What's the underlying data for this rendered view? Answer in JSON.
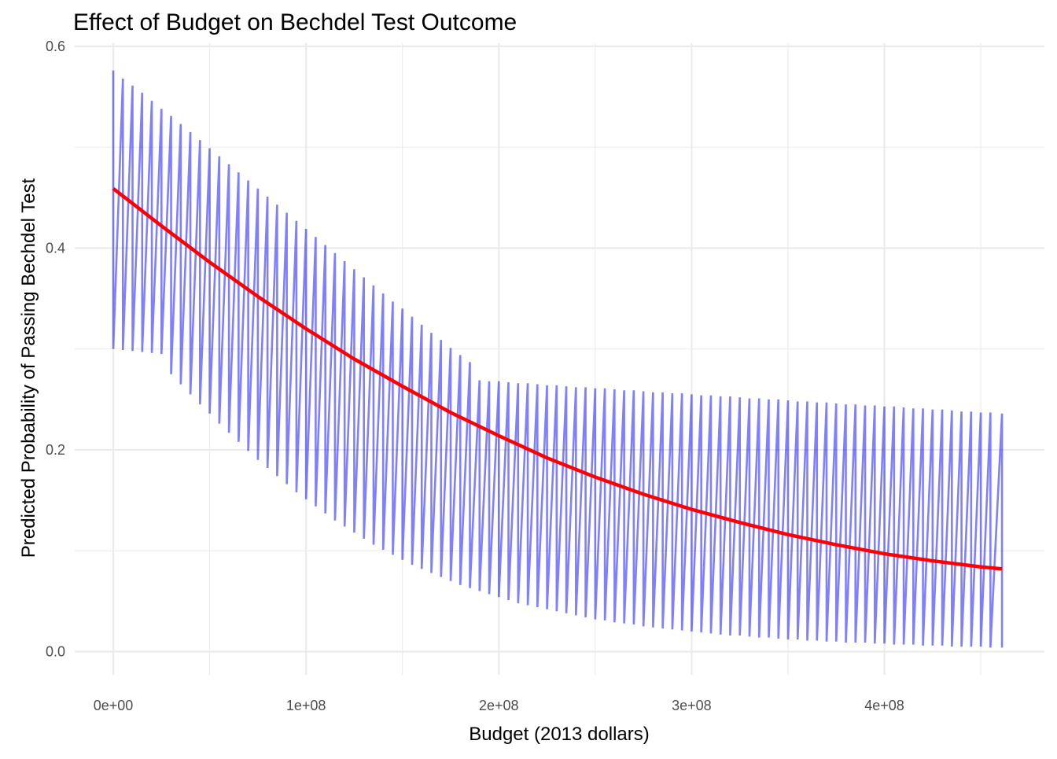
{
  "chart_data": {
    "type": "line",
    "title": "Effect of Budget on Bechdel Test Outcome",
    "xlabel": "Budget (2013 dollars)",
    "ylabel": "Predicted Probability of Passing Bechdel Test",
    "xlim": [
      -20000000,
      483000000
    ],
    "ylim": [
      -0.023,
      0.603
    ],
    "x_ticks": [
      0,
      100000000,
      200000000,
      300000000,
      400000000
    ],
    "x_tick_labels": [
      "0e+00",
      "1e+08",
      "2e+08",
      "3e+08",
      "4e+08"
    ],
    "y_ticks": [
      0.0,
      0.2,
      0.4,
      0.6
    ],
    "y_tick_labels": [
      "0.0",
      "0.2",
      "0.4",
      "0.6"
    ],
    "grid": true,
    "legend": "none",
    "colors": {
      "interval": "#0000ff",
      "fit": "#ff0000",
      "grid": "#ebebeb"
    },
    "series": [
      {
        "role": "confidence-interval",
        "x": [
          0,
          5000000,
          10000000,
          15000000,
          20000000,
          25000000,
          30000000,
          35000000,
          40000000,
          45000000,
          50000000,
          55000000,
          60000000,
          65000000,
          70000000,
          75000000,
          80000000,
          85000000,
          90000000,
          95000000,
          100000000,
          105000000,
          110000000,
          115000000,
          120000000,
          125000000,
          130000000,
          135000000,
          140000000,
          145000000,
          150000000,
          155000000,
          160000000,
          165000000,
          170000000,
          175000000,
          180000000,
          185000000,
          190000000,
          195000000,
          200000000,
          205000000,
          210000000,
          215000000,
          220000000,
          225000000,
          230000000,
          235000000,
          240000000,
          245000000,
          250000000,
          255000000,
          260000000,
          265000000,
          270000000,
          275000000,
          280000000,
          285000000,
          290000000,
          295000000,
          300000000,
          305000000,
          310000000,
          315000000,
          320000000,
          325000000,
          330000000,
          335000000,
          340000000,
          345000000,
          350000000,
          355000000,
          360000000,
          365000000,
          370000000,
          375000000,
          380000000,
          385000000,
          390000000,
          395000000,
          400000000,
          405000000,
          410000000,
          415000000,
          420000000,
          425000000,
          430000000,
          435000000,
          440000000,
          445000000,
          450000000,
          455000000,
          461000000
        ],
        "upper": [
          0.576,
          0.568,
          0.561,
          0.554,
          0.546,
          0.538,
          0.531,
          0.523,
          0.515,
          0.507,
          0.499,
          0.491,
          0.483,
          0.475,
          0.467,
          0.459,
          0.451,
          0.443,
          0.435,
          0.427,
          0.419,
          0.411,
          0.403,
          0.395,
          0.387,
          0.379,
          0.371,
          0.363,
          0.355,
          0.347,
          0.34,
          0.332,
          0.324,
          0.316,
          0.309,
          0.301,
          0.294,
          0.287,
          0.269,
          0.268,
          0.268,
          0.267,
          0.266,
          0.266,
          0.265,
          0.264,
          0.264,
          0.263,
          0.262,
          0.262,
          0.261,
          0.261,
          0.26,
          0.259,
          0.259,
          0.258,
          0.257,
          0.257,
          0.256,
          0.256,
          0.255,
          0.254,
          0.254,
          0.253,
          0.253,
          0.252,
          0.251,
          0.251,
          0.25,
          0.25,
          0.249,
          0.248,
          0.248,
          0.247,
          0.247,
          0.246,
          0.245,
          0.245,
          0.244,
          0.244,
          0.243,
          0.243,
          0.242,
          0.241,
          0.241,
          0.24,
          0.24,
          0.239,
          0.238,
          0.238,
          0.237,
          0.237,
          0.236
        ],
        "lower": [
          0.3,
          0.299,
          0.298,
          0.297,
          0.296,
          0.295,
          0.275,
          0.265,
          0.255,
          0.245,
          0.236,
          0.226,
          0.217,
          0.208,
          0.199,
          0.19,
          0.182,
          0.174,
          0.166,
          0.158,
          0.151,
          0.144,
          0.137,
          0.13,
          0.124,
          0.118,
          0.112,
          0.106,
          0.101,
          0.096,
          0.091,
          0.086,
          0.082,
          0.078,
          0.074,
          0.07,
          0.066,
          0.063,
          0.06,
          0.057,
          0.054,
          0.051,
          0.048,
          0.046,
          0.044,
          0.042,
          0.04,
          0.038,
          0.036,
          0.034,
          0.032,
          0.031,
          0.029,
          0.028,
          0.027,
          0.025,
          0.024,
          0.023,
          0.022,
          0.021,
          0.02,
          0.019,
          0.018,
          0.017,
          0.016,
          0.016,
          0.015,
          0.014,
          0.014,
          0.013,
          0.012,
          0.012,
          0.011,
          0.011,
          0.01,
          0.01,
          0.009,
          0.009,
          0.009,
          0.008,
          0.008,
          0.007,
          0.007,
          0.007,
          0.006,
          0.006,
          0.006,
          0.005,
          0.005,
          0.005,
          0.005,
          0.004,
          0.004
        ]
      },
      {
        "role": "fitted-probability",
        "x": [
          0,
          25000000,
          50000000,
          75000000,
          100000000,
          125000000,
          150000000,
          175000000,
          200000000,
          225000000,
          250000000,
          275000000,
          300000000,
          325000000,
          350000000,
          375000000,
          400000000,
          425000000,
          450000000,
          461000000
        ],
        "values": [
          0.459,
          0.422,
          0.386,
          0.352,
          0.32,
          0.29,
          0.263,
          0.237,
          0.214,
          0.192,
          0.173,
          0.156,
          0.141,
          0.128,
          0.116,
          0.106,
          0.097,
          0.09,
          0.084,
          0.082
        ]
      }
    ]
  }
}
